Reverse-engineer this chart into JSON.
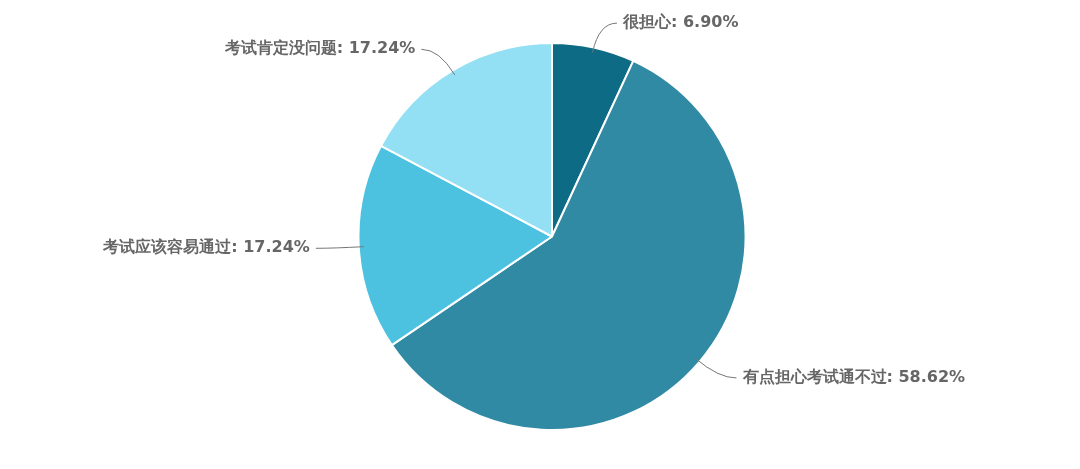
{
  "chart_data": {
    "type": "pie",
    "categories": [
      "很担心",
      "有点担心考试通不过",
      "考试应该容易通过",
      "考试肯定没问题"
    ],
    "values": [
      6.9,
      58.62,
      17.24,
      17.24
    ],
    "value_labels": [
      "6.90%",
      "58.62%",
      "17.24%",
      "17.24%"
    ],
    "colors": [
      "#0e6b86",
      "#318aa4",
      "#4dc2e0",
      "#93dff4"
    ],
    "legend": false
  }
}
